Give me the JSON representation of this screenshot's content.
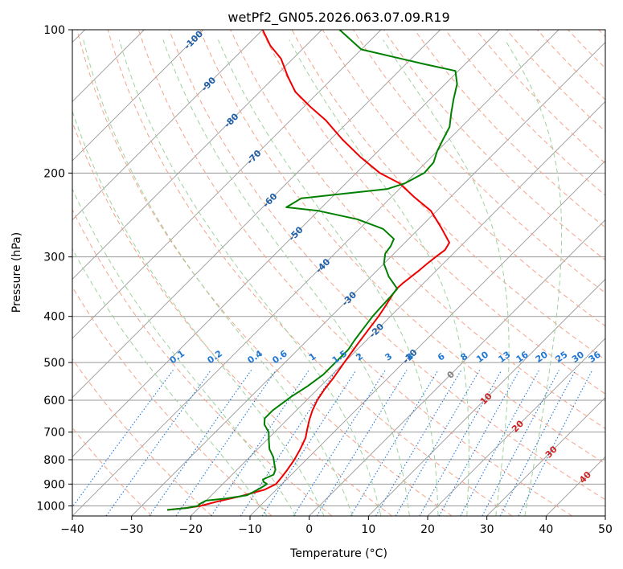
{
  "chart_data": {
    "type": "line",
    "title": "wetPf2_GN05.2026.063.07.09.R19",
    "xlabel": "Temperature (°C)",
    "ylabel": "Pressure (hPa)",
    "xlim": [
      -40,
      50
    ],
    "ylim": [
      1050,
      100
    ],
    "y_scale": "log",
    "grid": true,
    "x_ticks": [
      -40,
      -30,
      -20,
      -10,
      0,
      10,
      20,
      30,
      40,
      50
    ],
    "y_ticks": [
      100,
      200,
      300,
      400,
      500,
      600,
      700,
      800,
      900,
      1000
    ],
    "skew": 1,
    "series": [
      {
        "color": "#ee0000",
        "points": [
          [
            -25,
            1020
          ],
          [
            -22,
            1010
          ],
          [
            -20,
            1000
          ],
          [
            -18,
            980
          ],
          [
            -15,
            955
          ],
          [
            -12,
            925
          ],
          [
            -11,
            900
          ],
          [
            -11.2,
            870
          ],
          [
            -11.5,
            840
          ],
          [
            -12,
            800
          ],
          [
            -12.8,
            760
          ],
          [
            -13.8,
            720
          ],
          [
            -15,
            690
          ],
          [
            -16.2,
            660
          ],
          [
            -17.3,
            630
          ],
          [
            -18.2,
            600
          ],
          [
            -18.8,
            570
          ],
          [
            -19.2,
            540
          ],
          [
            -20,
            500
          ],
          [
            -20.8,
            460
          ],
          [
            -21.4,
            430
          ],
          [
            -22,
            400
          ],
          [
            -22.6,
            380
          ],
          [
            -23.3,
            360
          ],
          [
            -23.6,
            350
          ],
          [
            -23.5,
            340
          ],
          [
            -23.2,
            330
          ],
          [
            -22.9,
            320
          ],
          [
            -22.7,
            310
          ],
          [
            -22.4,
            300
          ],
          [
            -22,
            290
          ],
          [
            -22.5,
            280
          ],
          [
            -26.5,
            260
          ],
          [
            -31,
            240
          ],
          [
            -36,
            225
          ],
          [
            -41,
            210
          ],
          [
            -46,
            200
          ],
          [
            -52,
            185
          ],
          [
            -58,
            170
          ],
          [
            -64,
            155
          ],
          [
            -69,
            145
          ],
          [
            -74,
            135
          ],
          [
            -78,
            125
          ],
          [
            -82,
            115
          ],
          [
            -86,
            108
          ],
          [
            -90,
            100
          ]
        ]
      },
      {
        "color": "#008000",
        "points": [
          [
            -25,
            1020
          ],
          [
            -22,
            1010
          ],
          [
            -20.5,
            1000
          ],
          [
            -20.5,
            990
          ],
          [
            -20,
            975
          ],
          [
            -17,
            965
          ],
          [
            -14,
            950
          ],
          [
            -13.5,
            935
          ],
          [
            -13,
            920
          ],
          [
            -12.5,
            900
          ],
          [
            -13.5,
            890
          ],
          [
            -14,
            880
          ],
          [
            -13,
            860
          ],
          [
            -13.5,
            840
          ],
          [
            -14.5,
            820
          ],
          [
            -16,
            790
          ],
          [
            -18,
            760
          ],
          [
            -19.5,
            730
          ],
          [
            -21,
            700
          ],
          [
            -23,
            675
          ],
          [
            -24,
            655
          ],
          [
            -24,
            630
          ],
          [
            -23.2,
            590
          ],
          [
            -22.2,
            560
          ],
          [
            -21.5,
            530
          ],
          [
            -21.5,
            500
          ],
          [
            -21.5,
            470
          ],
          [
            -22,
            450
          ],
          [
            -22.5,
            425
          ],
          [
            -23,
            400
          ],
          [
            -23.2,
            380
          ],
          [
            -23.3,
            365
          ],
          [
            -23.5,
            350
          ],
          [
            -27,
            330
          ],
          [
            -30,
            310
          ],
          [
            -31.5,
            295
          ],
          [
            -31.8,
            285
          ],
          [
            -32.5,
            275
          ],
          [
            -36,
            262
          ],
          [
            -42,
            250
          ],
          [
            -50,
            240
          ],
          [
            -56,
            236
          ],
          [
            -55,
            226
          ],
          [
            -50,
            222
          ],
          [
            -42,
            216
          ],
          [
            -40,
            210
          ],
          [
            -38.5,
            200
          ],
          [
            -38.7,
            190
          ],
          [
            -40,
            180
          ],
          [
            -41,
            170
          ],
          [
            -42,
            160
          ],
          [
            -44,
            150
          ],
          [
            -46,
            140
          ],
          [
            -48,
            130
          ],
          [
            -50.5,
            122
          ],
          [
            -57,
            118
          ],
          [
            -70,
            110
          ],
          [
            -77,
            100
          ]
        ]
      }
    ],
    "dry_adiabat_labels": [
      "-100",
      "-90",
      "-80",
      "-70",
      "-60",
      "-50",
      "-40",
      "-30",
      "-20",
      "-10",
      "0",
      "10",
      "20",
      "30",
      "40"
    ],
    "mixing_ratio_labels": [
      "0.1",
      "0.2",
      "0.4",
      "0.6",
      "1",
      "1.5",
      "2",
      "3",
      "4",
      "6",
      "8",
      "10",
      "13",
      "16",
      "20",
      "25",
      "30",
      "36"
    ],
    "colors": {
      "temperature": "#ee0000",
      "dewpoint": "#008000",
      "isotherm": "#999999",
      "dry_adiabat": "#f4a38a",
      "moist_adiabat": "#9fd19f",
      "mixing_ratio": "#1f77d4",
      "dry_adiabat_label": "#1f5fa8",
      "warm_label": "#cc2222",
      "zero_label": "#808080"
    }
  }
}
